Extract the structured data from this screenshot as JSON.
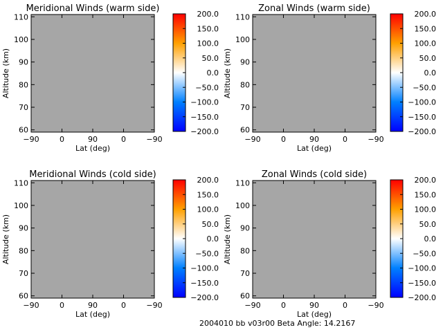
{
  "colorbar": {
    "ticks": [
      "200.0",
      "150.0",
      "100.0",
      "50.0",
      "0.0",
      "−50.0",
      "−100.0",
      "−150.0",
      "−200.0"
    ],
    "stops": [
      "#0000ff",
      "#0080ff",
      "#ffffff",
      "#ffa000",
      "#ff0000"
    ]
  },
  "footer": {
    "text": "2004010 bb v03r00   Beta Angle: 14.2167"
  },
  "chart_data": [
    {
      "type": "heatmap",
      "title": "Meridional Winds (warm side)",
      "xlabel": "Lat (deg)",
      "ylabel": "Altitude (km)",
      "x_ticks": [
        "−90",
        "0",
        "90",
        "0",
        "−90"
      ],
      "y_ticks": [
        "60",
        "70",
        "80",
        "90",
        "100",
        "110"
      ],
      "ylim": [
        59,
        111
      ],
      "clim": [
        -200,
        200
      ],
      "fill_color": "#a6a6a6",
      "values": []
    },
    {
      "type": "heatmap",
      "title": "Zonal Winds (warm side)",
      "xlabel": "Lat (deg)",
      "ylabel": "Altitude (km)",
      "x_ticks": [
        "−90",
        "0",
        "90",
        "0",
        "−90"
      ],
      "y_ticks": [
        "60",
        "70",
        "80",
        "90",
        "100",
        "110"
      ],
      "ylim": [
        59,
        111
      ],
      "clim": [
        -200,
        200
      ],
      "fill_color": "#a6a6a6",
      "values": []
    },
    {
      "type": "heatmap",
      "title": "Meridional Winds (cold side)",
      "xlabel": "Lat (deg)",
      "ylabel": "Altitude (km)",
      "x_ticks": [
        "−90",
        "0",
        "90",
        "0",
        "−90"
      ],
      "y_ticks": [
        "60",
        "70",
        "80",
        "90",
        "100",
        "110"
      ],
      "ylim": [
        59,
        111
      ],
      "clim": [
        -200,
        200
      ],
      "fill_color": "#a6a6a6",
      "values": []
    },
    {
      "type": "heatmap",
      "title": "Zonal Winds (cold side)",
      "xlabel": "Lat (deg)",
      "ylabel": "Altitude (km)",
      "x_ticks": [
        "−90",
        "0",
        "90",
        "0",
        "−90"
      ],
      "y_ticks": [
        "60",
        "70",
        "80",
        "90",
        "100",
        "110"
      ],
      "ylim": [
        59,
        111
      ],
      "clim": [
        -200,
        200
      ],
      "fill_color": "#a6a6a6",
      "values": []
    }
  ]
}
